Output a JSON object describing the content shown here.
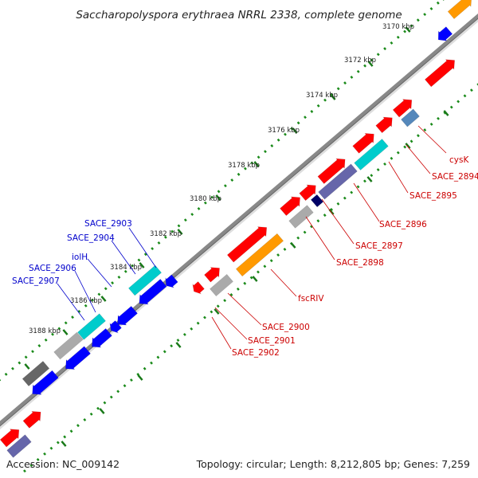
{
  "title": "Saccharopolyspora erythraea NRRL 2338, complete genome",
  "footer": {
    "accession": "Accession: NC_009142",
    "summary": "Topology: circular; Length: 8,212,805 bp; Genes: 7,259"
  },
  "colors": {
    "forward_gene": "#ff0000",
    "reverse_gene": "#0000ff",
    "cyan_feature": "#00cccc",
    "orange_feature": "#ff9900",
    "gray_feature": "#aaaaaa",
    "slate_feature": "#6666aa",
    "steel_feature": "#5588bb",
    "dark_gray_feature": "#666666",
    "navy_feature": "#000066",
    "backbone": "#888888",
    "tick": "#008800",
    "red_label": "#cc0000",
    "blue_label": "#0000cc"
  },
  "ruler": {
    "ticks": [
      "3170 kbp",
      "3172 kbp",
      "3174 kbp",
      "3176 kbp",
      "3178 kbp",
      "3180 kbp",
      "3182 kbp",
      "3184 kbp",
      "3186 kbp",
      "3188 kbp"
    ]
  },
  "forward_labels": [
    "cysK",
    "SACE_2894",
    "SACE_2895",
    "SACE_2896",
    "SACE_2897",
    "SACE_2898",
    "fscRIV",
    "SACE_2900",
    "SACE_2901",
    "SACE_2902"
  ],
  "reverse_labels": [
    "SACE_2903",
    "SACE_2904",
    "iolH",
    "SACE_2906",
    "SACE_2907"
  ]
}
